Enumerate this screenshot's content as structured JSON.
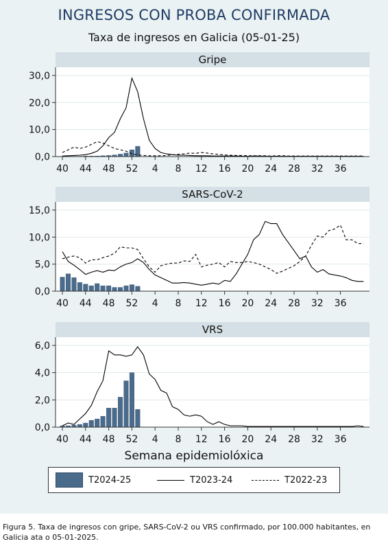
{
  "figure": {
    "title": "INGRESOS CON PROBA CONFIRMADA",
    "subtitle": "Taxa de ingresos en Galicia (05-01-25)",
    "xlabel": "Semana epidemiolóxica",
    "caption_line1": "Figura 5. Taxa de ingresos con gripe, SARS-CoV-2 ou VRS confirmado, por 100.000 habitantes, en",
    "caption_line2": "Galicia ata o 05-01-2025.",
    "colors": {
      "panel_bg": "#eaf2f3",
      "strip_bg": "#d4e0e5",
      "bar": "#4a6b8c",
      "bar_edge": "#2f4a66",
      "line": "#000000"
    },
    "legend": {
      "bar_label": "T2024-25",
      "solid_label": "T2023-24",
      "dashed_label": "T2022-23"
    }
  },
  "chart_data": [
    {
      "type": "bar+line",
      "title": "Gripe",
      "weeks": [
        40,
        41,
        42,
        43,
        44,
        45,
        46,
        47,
        48,
        49,
        50,
        51,
        52,
        53,
        1,
        2,
        3,
        4,
        5,
        6,
        7,
        8,
        9,
        10,
        11,
        12,
        13,
        14,
        15,
        16,
        17,
        18,
        19,
        20,
        21,
        22,
        23,
        24,
        25,
        26,
        27,
        28,
        29,
        30,
        31,
        32,
        33,
        34,
        35,
        36,
        37,
        38,
        39
      ],
      "x_ticks": [
        "40",
        "44",
        "48",
        "52",
        "4",
        "8",
        "12",
        "16",
        "20",
        "24",
        "28",
        "32",
        "36"
      ],
      "y_ticks": [
        "0,0",
        "10,0",
        "20,0",
        "30,0"
      ],
      "ylim": [
        0,
        32
      ],
      "series": [
        {
          "name": "T2024-25",
          "style": "bar",
          "values": [
            0.1,
            0.1,
            0.1,
            0.1,
            0.2,
            0.2,
            0.2,
            0.3,
            0.4,
            0.6,
            0.9,
            1.3,
            2.5,
            3.8
          ]
        },
        {
          "name": "T2023-24",
          "style": "solid",
          "values": [
            0.2,
            0.3,
            0.4,
            0.5,
            0.7,
            1.2,
            2.0,
            4.0,
            7.0,
            9.0,
            14.0,
            18.0,
            29.0,
            24.0,
            14.0,
            6.0,
            3.0,
            1.5,
            1.0,
            0.7,
            0.5,
            0.5,
            0.4,
            0.3,
            0.3,
            0.3,
            0.2,
            0.2,
            0.2,
            0.2,
            0.2,
            0.1,
            0.1,
            0.2,
            0.2,
            0.1,
            0.1,
            0.1,
            0.1,
            0.1,
            0.1,
            0.1,
            0.1,
            0.1,
            0.1,
            0.1,
            0.1,
            0.1,
            0.1,
            0.1,
            0.1,
            0.1,
            0.1
          ]
        },
        {
          "name": "T2022-23",
          "style": "dashed",
          "values": [
            1.5,
            2.5,
            3.5,
            3.0,
            3.5,
            4.5,
            5.5,
            5.0,
            4.0,
            3.0,
            2.5,
            2.0,
            1.0,
            0.6,
            0.4,
            0.3,
            0.3,
            0.3,
            0.4,
            0.6,
            0.8,
            1.0,
            1.3,
            1.2,
            1.5,
            1.3,
            1.0,
            0.8,
            0.6,
            0.5,
            0.4,
            0.4,
            0.3,
            0.3,
            0.3,
            0.3,
            0.2,
            0.3,
            0.3,
            0.2,
            0.2,
            0.2,
            0.2,
            0.2,
            0.2,
            0.2,
            0.2,
            0.2,
            0.2,
            0.2,
            0.2,
            0.2,
            0.2
          ]
        }
      ]
    },
    {
      "type": "bar+line",
      "title": "SARS-CoV-2",
      "weeks": [
        40,
        41,
        42,
        43,
        44,
        45,
        46,
        47,
        48,
        49,
        50,
        51,
        52,
        53,
        1,
        2,
        3,
        4,
        5,
        6,
        7,
        8,
        9,
        10,
        11,
        12,
        13,
        14,
        15,
        16,
        17,
        18,
        19,
        20,
        21,
        22,
        23,
        24,
        25,
        26,
        27,
        28,
        29,
        30,
        31,
        32,
        33,
        34,
        35,
        36,
        37,
        38,
        39
      ],
      "x_ticks": [
        "40",
        "44",
        "48",
        "52",
        "4",
        "8",
        "12",
        "16",
        "20",
        "24",
        "28",
        "32",
        "36"
      ],
      "y_ticks": [
        "0,0",
        "5,0",
        "10,0",
        "15,0"
      ],
      "ylim": [
        0,
        16
      ],
      "series": [
        {
          "name": "T2024-25",
          "style": "bar",
          "values": [
            2.6,
            3.2,
            2.5,
            1.6,
            1.3,
            1.0,
            1.4,
            1.0,
            1.0,
            0.7,
            0.7,
            1.0,
            1.2,
            0.9
          ]
        },
        {
          "name": "T2023-24",
          "style": "solid",
          "values": [
            7.3,
            5.5,
            4.8,
            4.0,
            3.1,
            3.5,
            3.8,
            3.5,
            3.9,
            3.8,
            4.5,
            5.0,
            5.3,
            6.0,
            5.3,
            4.0,
            3.0,
            2.5,
            2.0,
            1.5,
            1.5,
            1.6,
            1.5,
            1.3,
            1.1,
            1.3,
            1.5,
            1.3,
            2.0,
            1.8,
            3.2,
            5.0,
            6.8,
            9.5,
            10.5,
            12.9,
            12.5,
            12.5,
            10.5,
            9.0,
            7.5,
            6.0,
            6.5,
            4.5,
            3.5,
            4.0,
            3.2,
            3.0,
            2.8,
            2.5,
            2.0,
            1.8,
            1.8
          ]
        },
        {
          "name": "T2022-23",
          "style": "dashed",
          "values": [
            6.0,
            6.3,
            6.5,
            6.2,
            5.2,
            5.8,
            5.8,
            6.2,
            6.5,
            7.0,
            8.2,
            8.0,
            8.0,
            7.7,
            6.0,
            4.5,
            3.5,
            4.7,
            5.0,
            5.2,
            5.2,
            5.6,
            5.5,
            6.8,
            4.5,
            4.8,
            5.0,
            5.3,
            4.5,
            5.5,
            5.3,
            5.3,
            5.5,
            5.3,
            5.0,
            4.5,
            4.0,
            3.3,
            3.7,
            4.2,
            4.7,
            5.5,
            6.5,
            8.5,
            10.2,
            10.0,
            11.2,
            11.5,
            12.2,
            9.5,
            9.5,
            8.8,
            8.8
          ]
        }
      ]
    },
    {
      "type": "bar+line",
      "title": "VRS",
      "weeks": [
        40,
        41,
        42,
        43,
        44,
        45,
        46,
        47,
        48,
        49,
        50,
        51,
        52,
        53,
        1,
        2,
        3,
        4,
        5,
        6,
        7,
        8,
        9,
        10,
        11,
        12,
        13,
        14,
        15,
        16,
        17,
        18,
        19,
        20,
        21,
        22,
        23,
        24,
        25,
        26,
        27,
        28,
        29,
        30,
        31,
        32,
        33,
        34,
        35,
        36,
        37,
        38,
        39
      ],
      "x_ticks": [
        "40",
        "44",
        "48",
        "52",
        "4",
        "8",
        "12",
        "16",
        "20",
        "24",
        "28",
        "32",
        "36"
      ],
      "y_ticks": [
        "0,0",
        "2,0",
        "4,0",
        "6,0"
      ],
      "ylim": [
        0,
        6.4
      ],
      "series": [
        {
          "name": "T2024-25",
          "style": "bar",
          "values": [
            0.1,
            0.1,
            0.15,
            0.2,
            0.3,
            0.5,
            0.6,
            0.8,
            1.4,
            1.4,
            2.2,
            3.4,
            4.0,
            1.3
          ]
        },
        {
          "name": "T2023-24",
          "style": "solid",
          "values": [
            0.1,
            0.3,
            0.2,
            0.6,
            1.0,
            1.6,
            2.6,
            3.4,
            5.6,
            5.3,
            5.3,
            5.2,
            5.3,
            5.9,
            5.3,
            3.9,
            3.5,
            2.7,
            2.5,
            1.5,
            1.3,
            0.9,
            0.8,
            0.9,
            0.8,
            0.4,
            0.2,
            0.4,
            0.2,
            0.1,
            0.1,
            0.1,
            0.05,
            0.05,
            0.05,
            0.05,
            0.05,
            0.05,
            0.05,
            0.05,
            0.05,
            0.05,
            0.05,
            0.05,
            0.05,
            0.05,
            0.05,
            0.05,
            0.05,
            0.05,
            0.05,
            0.1,
            0.05
          ]
        },
        {
          "name": "T2022-23",
          "style": "dashed",
          "values": [
            0.0,
            0.0,
            0.0,
            0.0,
            0.0,
            0.0,
            0.0,
            0.0,
            0.0,
            0.0,
            0.0,
            0.0,
            0.0,
            0.0,
            0.0,
            0.0,
            0.0,
            0.0,
            0.0,
            0.0,
            0.0,
            0.0,
            0.0,
            0.0,
            0.0,
            0.0,
            0.0,
            0.0,
            0.0,
            0.0,
            0.0,
            0.0,
            0.0,
            0.0,
            0.0,
            0.0,
            0.0,
            0.0,
            0.0,
            0.0,
            0.0,
            0.0,
            0.0,
            0.0,
            0.0,
            0.0,
            0.0,
            0.0,
            0.0,
            0.0,
            0.0,
            0.0,
            0.0
          ]
        }
      ]
    }
  ]
}
